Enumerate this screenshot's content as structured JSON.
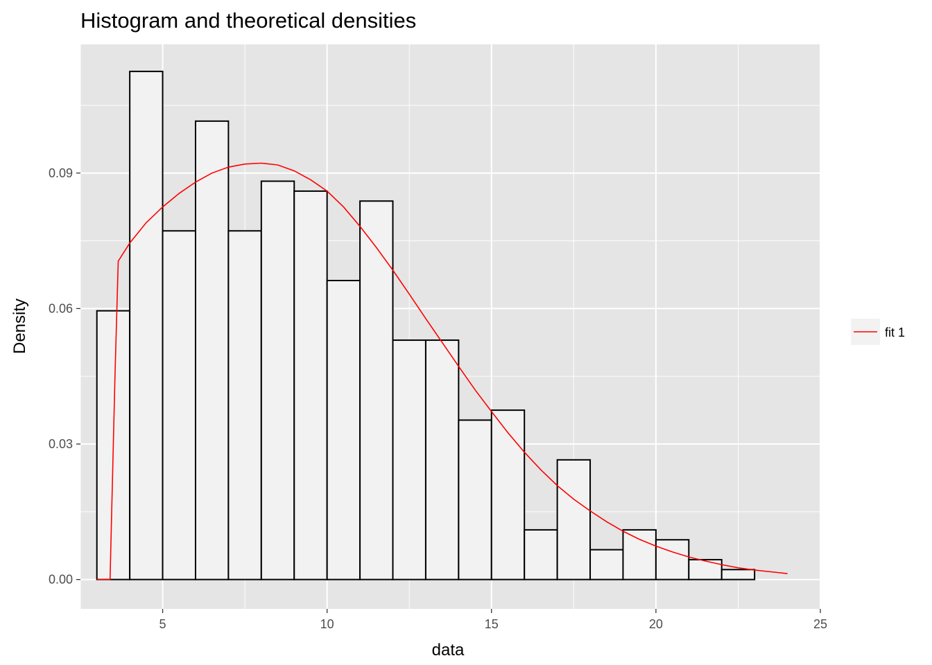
{
  "chart_data": {
    "type": "bar",
    "title": "Histogram and theoretical densities",
    "xlabel": "data",
    "ylabel": "Density",
    "xlim": [
      2.5,
      25.0
    ],
    "ylim": [
      -0.0065,
      0.1185
    ],
    "x_ticks": [
      5,
      10,
      15,
      20,
      25
    ],
    "x_tick_labels": [
      "5",
      "10",
      "15",
      "20",
      "25"
    ],
    "y_ticks": [
      0.0,
      0.03,
      0.06,
      0.09
    ],
    "y_tick_labels": [
      "0.00",
      "0.03",
      "0.06",
      "0.09"
    ],
    "grid": true,
    "legend_position": "right",
    "bar_fill": "#f2f2f2",
    "bar_outline": "#000000",
    "panel_background": "#e5e5e5",
    "grid_color": "#ffffff",
    "bins": [
      {
        "x0": 3,
        "x1": 4,
        "density": 0.0595
      },
      {
        "x0": 4,
        "x1": 5,
        "density": 0.1125
      },
      {
        "x0": 5,
        "x1": 6,
        "density": 0.0772
      },
      {
        "x0": 6,
        "x1": 7,
        "density": 0.1015
      },
      {
        "x0": 7,
        "x1": 8,
        "density": 0.0772
      },
      {
        "x0": 8,
        "x1": 9,
        "density": 0.0882
      },
      {
        "x0": 9,
        "x1": 10,
        "density": 0.086
      },
      {
        "x0": 10,
        "x1": 11,
        "density": 0.0662
      },
      {
        "x0": 11,
        "x1": 12,
        "density": 0.0838
      },
      {
        "x0": 12,
        "x1": 13,
        "density": 0.053
      },
      {
        "x0": 13,
        "x1": 14,
        "density": 0.053
      },
      {
        "x0": 14,
        "x1": 15,
        "density": 0.0353
      },
      {
        "x0": 15,
        "x1": 16,
        "density": 0.0375
      },
      {
        "x0": 16,
        "x1": 17,
        "density": 0.011
      },
      {
        "x0": 17,
        "x1": 18,
        "density": 0.0265
      },
      {
        "x0": 18,
        "x1": 19,
        "density": 0.0066
      },
      {
        "x0": 19,
        "x1": 20,
        "density": 0.011
      },
      {
        "x0": 20,
        "x1": 21,
        "density": 0.0088
      },
      {
        "x0": 21,
        "x1": 22,
        "density": 0.0044
      },
      {
        "x0": 22,
        "x1": 23,
        "density": 0.0022
      },
      {
        "x0": 23,
        "x1": 24,
        "density": 0.0
      }
    ],
    "series": [
      {
        "name": "fit 1",
        "type": "line",
        "color": "#ff0000",
        "x": [
          3.0,
          3.4,
          3.55,
          3.65,
          4.0,
          4.5,
          5.0,
          5.5,
          6.0,
          6.5,
          7.0,
          7.5,
          8.0,
          8.5,
          9.0,
          9.5,
          10.0,
          10.5,
          11.0,
          11.5,
          12.0,
          12.5,
          13.0,
          13.5,
          14.0,
          14.5,
          15.0,
          15.5,
          16.0,
          16.5,
          17.0,
          17.5,
          18.0,
          18.5,
          19.0,
          19.5,
          20.0,
          20.5,
          21.0,
          21.5,
          22.0,
          22.5,
          23.0,
          23.5,
          24.0
        ],
        "y": [
          0.0,
          0.0,
          0.045,
          0.0705,
          0.0745,
          0.079,
          0.0825,
          0.0855,
          0.088,
          0.09,
          0.0913,
          0.092,
          0.0922,
          0.0918,
          0.0905,
          0.0885,
          0.086,
          0.0825,
          0.0782,
          0.0735,
          0.0685,
          0.0632,
          0.0578,
          0.0525,
          0.0472,
          0.042,
          0.0372,
          0.0325,
          0.0282,
          0.0243,
          0.0208,
          0.0178,
          0.0152,
          0.0128,
          0.0107,
          0.0089,
          0.0074,
          0.0061,
          0.005,
          0.0041,
          0.0033,
          0.0026,
          0.0021,
          0.0017,
          0.0013
        ]
      }
    ]
  }
}
